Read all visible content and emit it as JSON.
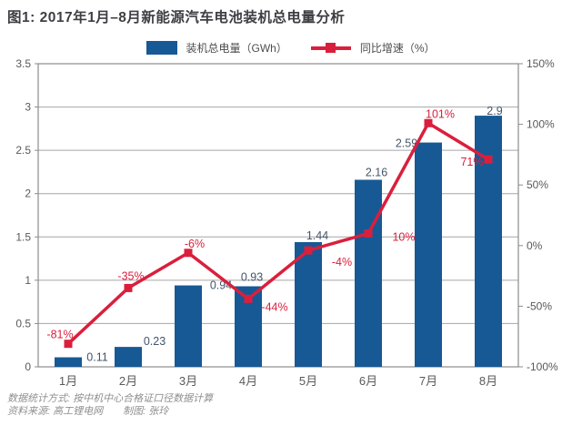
{
  "header": {
    "title": "图1: 2017年1月–8月新能源汽车电池装机总电量分析"
  },
  "legend": {
    "bar_label": "装机总电量（GWh）",
    "line_label": "同比增速（%）"
  },
  "chart_data": {
    "type": "bar",
    "subtype": "bar-line-combo",
    "title": "图1: 2017年1月–8月新能源汽车电池装机总电量分析",
    "categories": [
      "1月",
      "2月",
      "3月",
      "4月",
      "5月",
      "6月",
      "7月",
      "8月"
    ],
    "series": [
      {
        "name": "装机总电量（GWh）",
        "chart": "bar",
        "axis": "left",
        "color": "#165995",
        "values": [
          0.11,
          0.23,
          0.94,
          0.93,
          1.44,
          2.16,
          2.59,
          2.9
        ],
        "data_labels": [
          "0.11",
          "0.23",
          "0.94",
          "0.93",
          "1.44",
          "2.16",
          "2.59",
          "2.9"
        ]
      },
      {
        "name": "同比增速（%）",
        "chart": "line",
        "axis": "right",
        "color": "#da1f3d",
        "values": [
          -81,
          -35,
          -6,
          -44,
          -4,
          10,
          101,
          71
        ],
        "data_labels": [
          "-81%",
          "-35%",
          "-6%",
          "-44%",
          "-4%",
          "10%",
          "101%",
          "71%"
        ]
      }
    ],
    "left_axis": {
      "min": 0,
      "max": 3.5,
      "step": 0.5,
      "tick_labels": [
        "3.5",
        "3",
        "2.5",
        "2",
        "1.5",
        "1",
        "0.5",
        "0"
      ]
    },
    "right_axis": {
      "min": -100,
      "max": 150,
      "step": 50,
      "tick_labels": [
        "150%",
        "100%",
        "50%",
        "0%",
        "-50%",
        "-100%"
      ]
    },
    "grid": true,
    "legend_position": "top"
  },
  "footer": {
    "line1": "数据统计方式: 按中机中心合格证口径数据计算",
    "line2": "资料来源: 高工锂电网　　制图: 张玲"
  },
  "colors": {
    "bar": "#165995",
    "line": "#da1f3d",
    "grid": "#a6a6a6",
    "plot_border": "#8c8c8c",
    "axis_text": "#595959",
    "bar_label_text": "#44546a",
    "title_text": "#3e3e43",
    "footer_text": "#8f8f8f"
  }
}
